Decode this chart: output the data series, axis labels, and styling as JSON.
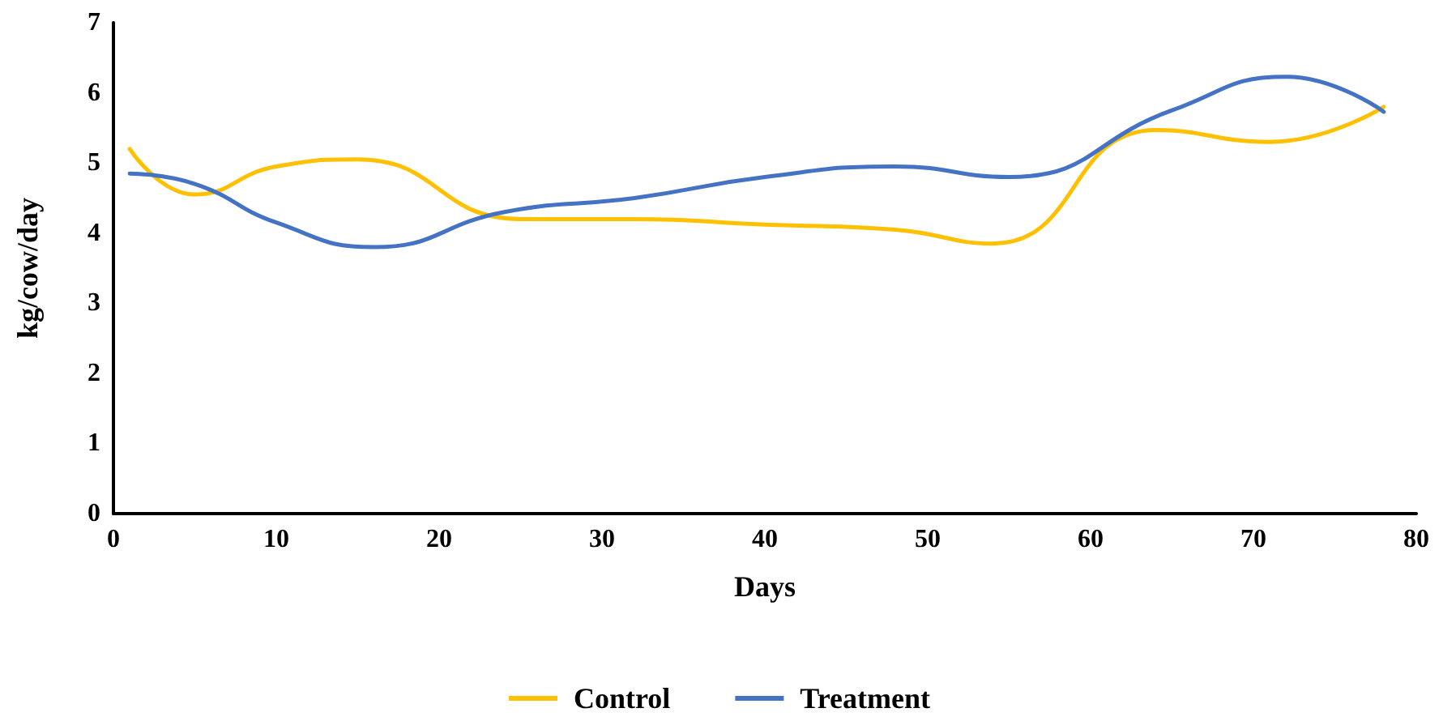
{
  "chart_data": {
    "type": "line",
    "xlabel": "Days",
    "ylabel": "kg/cow/day",
    "xlim": [
      0,
      80
    ],
    "xticks": [
      0,
      10,
      20,
      30,
      40,
      50,
      60,
      70,
      80
    ],
    "ylim": [
      0,
      7
    ],
    "yticks": [
      0,
      1,
      2,
      3,
      4,
      5,
      6,
      7
    ],
    "grid": false,
    "legend": "bottom",
    "marker": "none",
    "line_style": "solid",
    "series": [
      {
        "name": "Control",
        "color": "#ffc000",
        "x": [
          1,
          5,
          10,
          15,
          25,
          32,
          40,
          48,
          54,
          64,
          71,
          78
        ],
        "values": [
          5.2,
          4.55,
          4.95,
          5.05,
          4.2,
          4.2,
          4.12,
          4.05,
          3.85,
          5.47,
          5.3,
          5.8
        ]
      },
      {
        "name": "Treatment",
        "color": "#4472c4",
        "x": [
          1,
          5,
          10,
          16,
          24,
          32,
          40,
          48,
          55,
          65,
          72,
          78
        ],
        "values": [
          4.85,
          4.7,
          4.15,
          3.8,
          4.3,
          4.5,
          4.8,
          4.95,
          4.8,
          5.75,
          6.23,
          5.73
        ]
      }
    ]
  }
}
